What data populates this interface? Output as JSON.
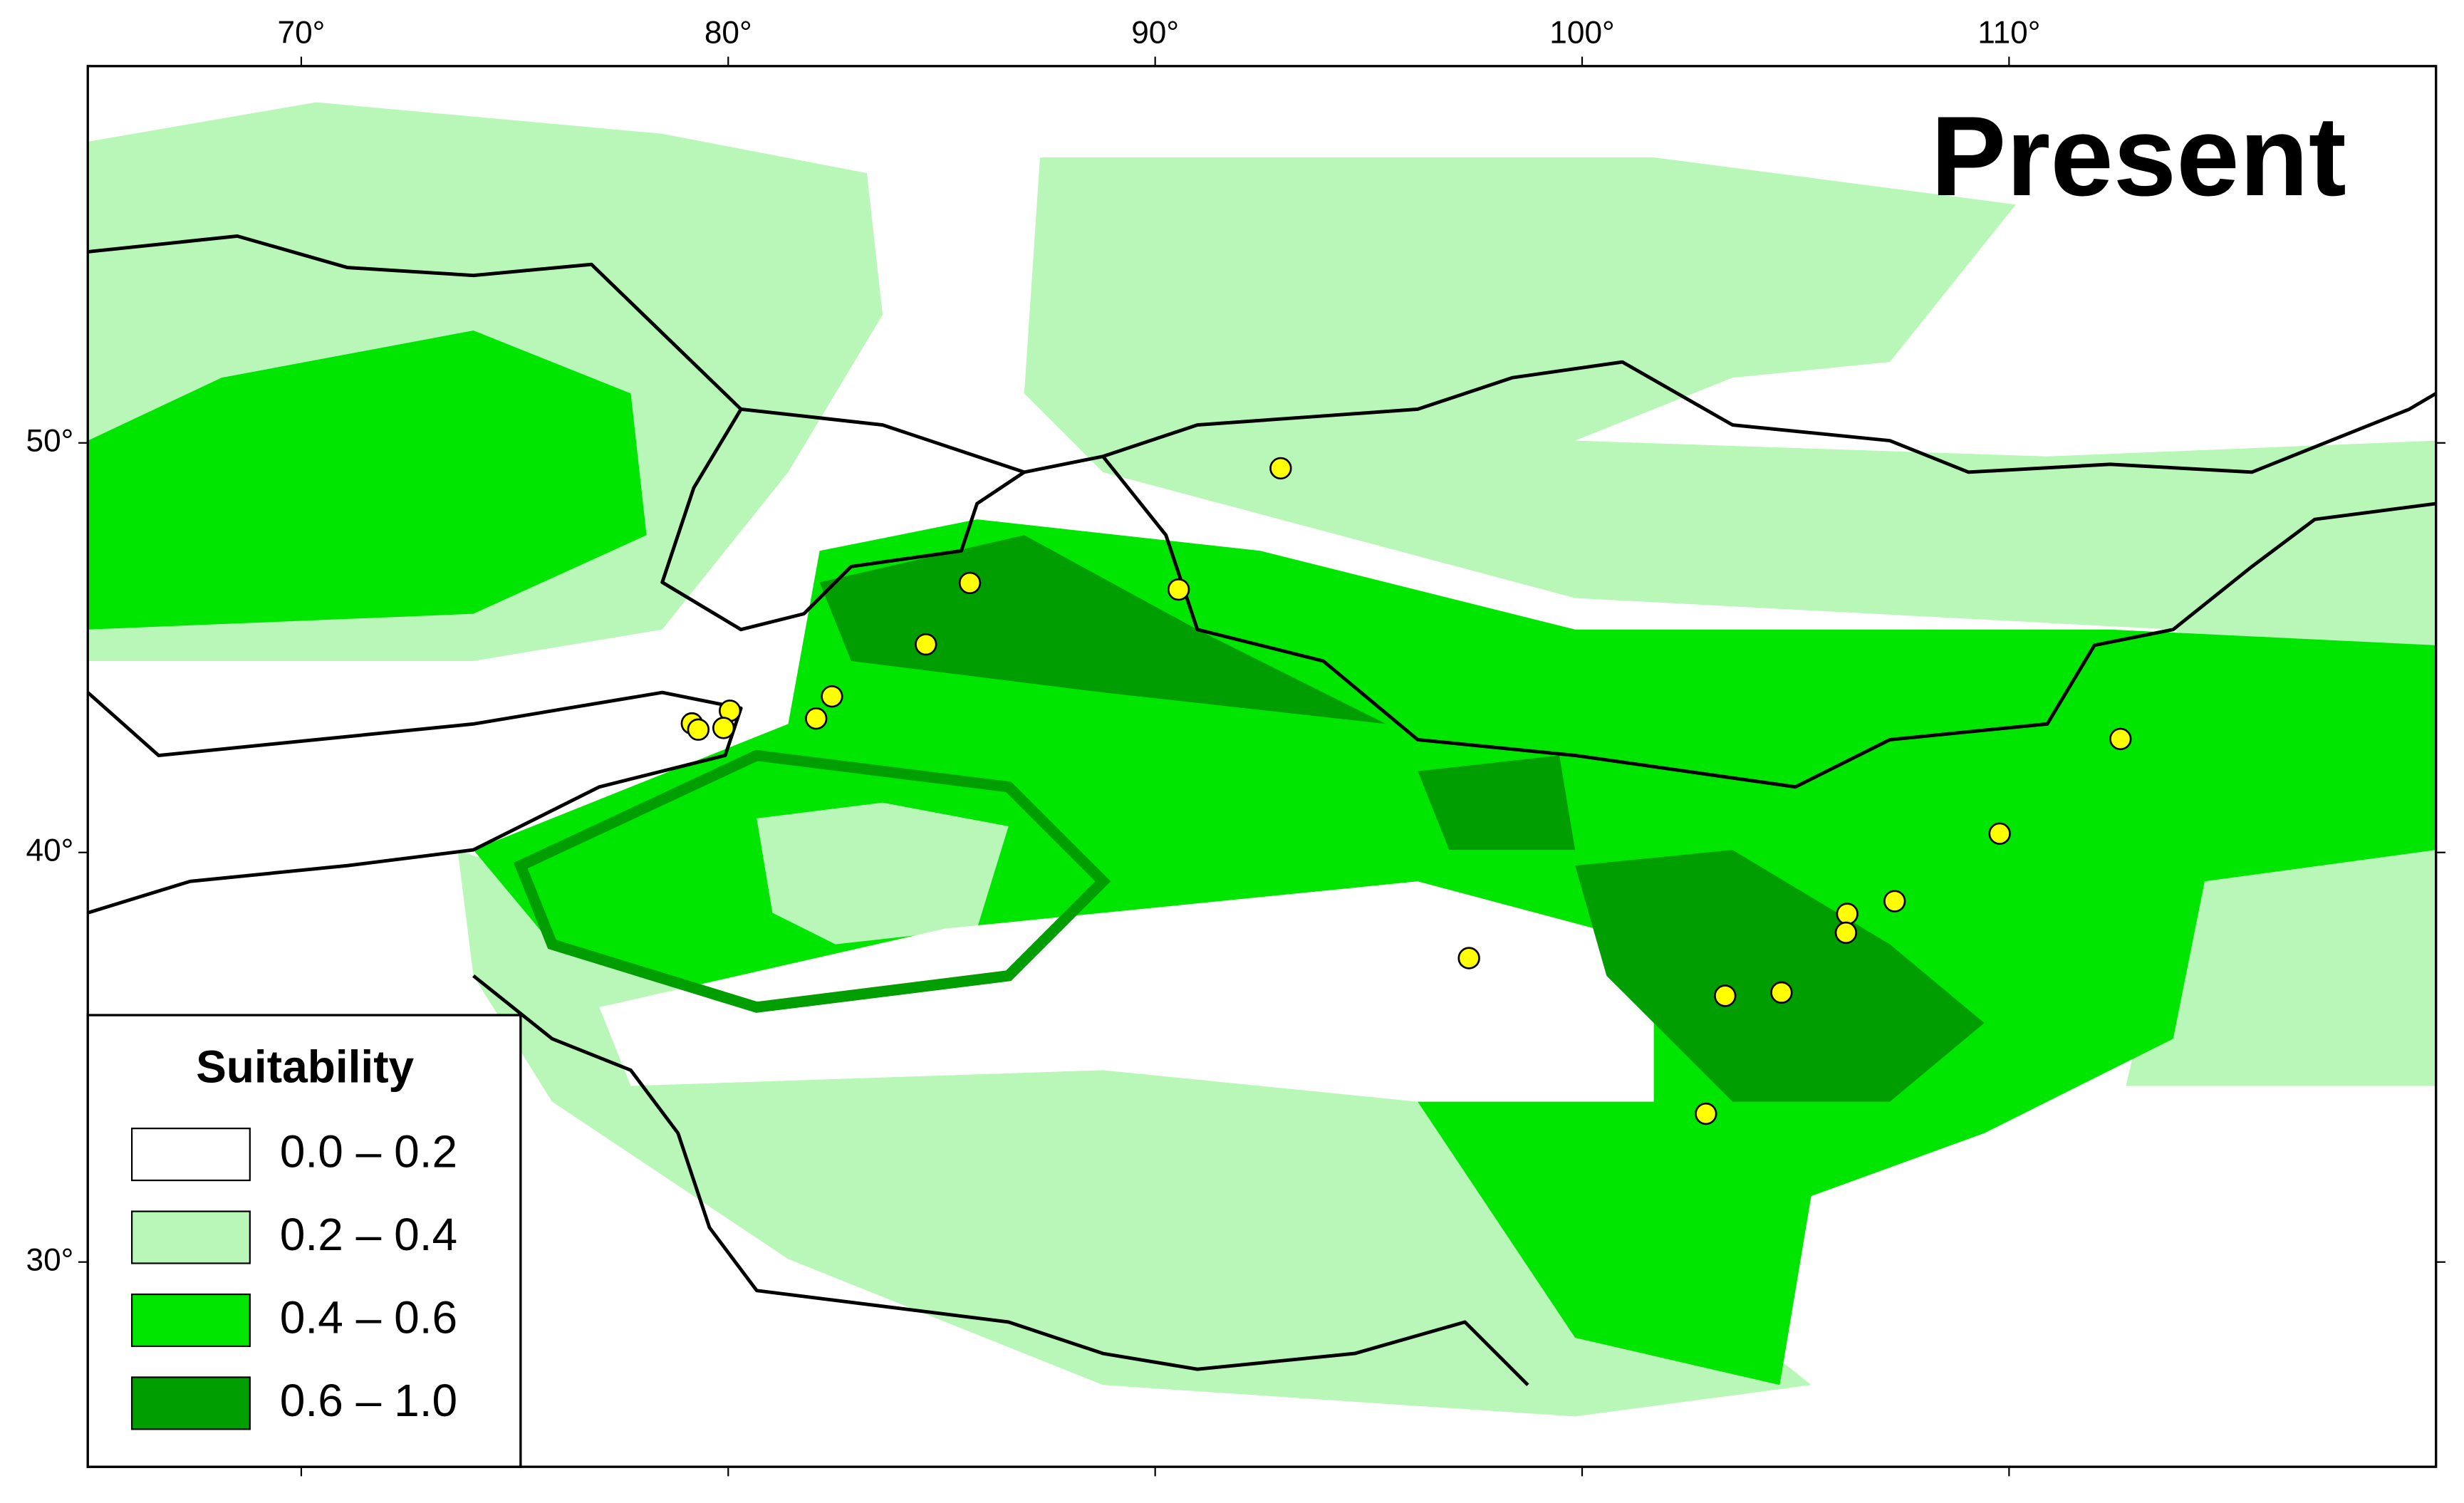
{
  "map": {
    "title": "Present",
    "xlim": [
      65,
      120
    ],
    "ylim": [
      25,
      59.2
    ],
    "xticks": [
      {
        "value": 70,
        "label": "70°"
      },
      {
        "value": 80,
        "label": "80°"
      },
      {
        "value": 90,
        "label": "90°"
      },
      {
        "value": 100,
        "label": "100°"
      },
      {
        "value": 110,
        "label": "110°"
      }
    ],
    "yticks": [
      {
        "value": 30,
        "label": "30°"
      },
      {
        "value": 40,
        "label": "40°"
      },
      {
        "value": 50,
        "label": "50°"
      }
    ],
    "legend": {
      "title": "Suitability",
      "classes": [
        {
          "label": "0.0 – 0.2",
          "color": "#ffffff"
        },
        {
          "label": "0.2 – 0.4",
          "color": "#b8f7b8"
        },
        {
          "label": "0.4 – 0.6",
          "color": "#00e600"
        },
        {
          "label": "0.6 – 1.0",
          "color": "#009e00"
        }
      ]
    },
    "points": {
      "color": "#ffff00",
      "lon": [
        92.94,
        85.66,
        90.55,
        84.63,
        82.43,
        82.06,
        80.04,
        79.15,
        79.3,
        79.89,
        112.61,
        109.78,
        107.32,
        106.21,
        106.18,
        97.35,
        103.35,
        104.67,
        102.9
      ],
      "lat": [
        49.38,
        46.58,
        46.42,
        45.08,
        43.81,
        43.27,
        43.46,
        43.15,
        43.0,
        43.04,
        42.77,
        40.46,
        38.81,
        38.5,
        38.04,
        37.42,
        36.5,
        36.58,
        33.62
      ]
    }
  }
}
